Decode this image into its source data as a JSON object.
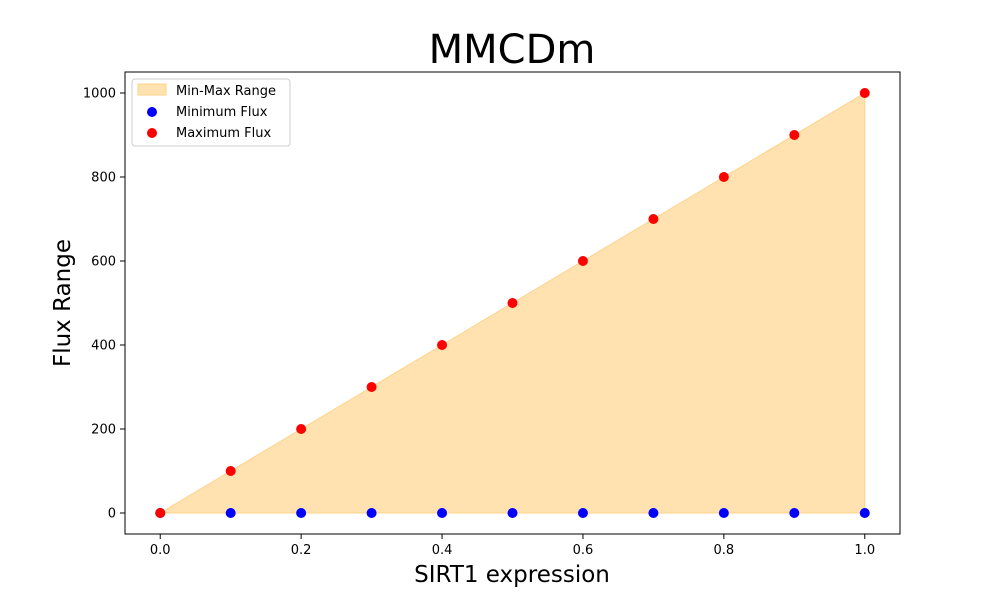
{
  "chart_data": {
    "type": "scatter",
    "title": "MMCDm",
    "xlabel": "SIRT1 expression",
    "ylabel": "Flux Range",
    "xlim": [
      -0.05,
      1.05
    ],
    "ylim": [
      -50,
      1050
    ],
    "x_ticks": [
      0.0,
      0.2,
      0.4,
      0.6,
      0.8,
      1.0
    ],
    "x_tick_labels": [
      "0.0",
      "0.2",
      "0.4",
      "0.6",
      "0.8",
      "1.0"
    ],
    "y_ticks": [
      0,
      200,
      400,
      600,
      800,
      1000
    ],
    "y_tick_labels": [
      "0",
      "200",
      "400",
      "600",
      "800",
      "1000"
    ],
    "x": [
      0.0,
      0.1,
      0.2,
      0.3,
      0.4,
      0.5,
      0.6,
      0.7,
      0.8,
      0.9,
      1.0
    ],
    "fill": {
      "name": "Min-Max Range",
      "color": "#ffe2b0",
      "edge_color": "#ffd28a"
    },
    "series": [
      {
        "name": "Minimum Flux",
        "color": "#0000ff",
        "values": [
          0,
          0,
          0,
          0,
          0,
          0,
          0,
          0,
          0,
          0,
          0
        ]
      },
      {
        "name": "Maximum Flux",
        "color": "#ff0000",
        "values": [
          0,
          100,
          200,
          300,
          400,
          500,
          600,
          700,
          800,
          900,
          1000
        ]
      }
    ],
    "legend": {
      "location": "upper left",
      "entries": [
        "Min-Max Range",
        "Minimum Flux",
        "Maximum Flux"
      ]
    },
    "grid": false
  }
}
